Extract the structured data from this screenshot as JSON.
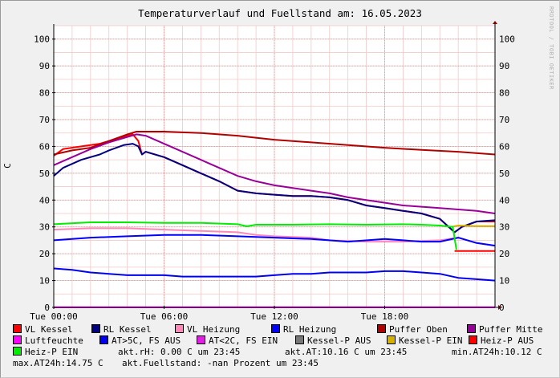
{
  "title": "Temperaturverlauf und Fuellstand am: 16.05.2023",
  "watermark": "RRDTOOL / TOBI OETIKER",
  "chart_data": {
    "type": "line",
    "title": "Temperaturverlauf und Fuellstand am: 16.05.2023",
    "ylabel": "C",
    "xlabel": "",
    "ylim": [
      0,
      105
    ],
    "yticks": [
      0,
      10,
      20,
      30,
      40,
      50,
      60,
      70,
      80,
      90,
      100
    ],
    "xlim_hours": [
      0,
      24
    ],
    "xticks": [
      {
        "label": "Tue 00:00",
        "hour": 0
      },
      {
        "label": "Tue 06:00",
        "hour": 6
      },
      {
        "label": "Tue 12:00",
        "hour": 12
      },
      {
        "label": "Tue 18:00",
        "hour": 18
      }
    ],
    "grid": true,
    "legend_position": "bottom",
    "series": [
      {
        "name": "VL Kessel",
        "color": "#ff0000",
        "points": [
          [
            0,
            56.5
          ],
          [
            0.5,
            59
          ],
          [
            1.5,
            60
          ],
          [
            2.5,
            61
          ],
          [
            3,
            62
          ],
          [
            3.8,
            63.5
          ],
          [
            4.3,
            64.5
          ],
          [
            4.6,
            62
          ],
          [
            4.8,
            57
          ],
          [
            5,
            58
          ],
          [
            6,
            56
          ],
          [
            7,
            53
          ],
          [
            8,
            50
          ],
          [
            9,
            47
          ],
          [
            10,
            43.5
          ],
          [
            11,
            42.5
          ],
          [
            12,
            42
          ],
          [
            13,
            41.5
          ],
          [
            14,
            41.5
          ],
          [
            15,
            41
          ],
          [
            16,
            40
          ],
          [
            17,
            38
          ],
          [
            18,
            37
          ],
          [
            19,
            36
          ],
          [
            20,
            35
          ],
          [
            21,
            33
          ],
          [
            21.8,
            28
          ],
          [
            22.2,
            30
          ],
          [
            23,
            32
          ],
          [
            24,
            32
          ]
        ]
      },
      {
        "name": "RL Kessel",
        "color": "#000080",
        "points": [
          [
            0,
            49
          ],
          [
            0.5,
            52
          ],
          [
            1.5,
            55
          ],
          [
            2.5,
            57
          ],
          [
            3,
            58.5
          ],
          [
            3.8,
            60.5
          ],
          [
            4.3,
            61
          ],
          [
            4.6,
            60
          ],
          [
            4.8,
            57
          ],
          [
            5,
            58
          ],
          [
            6,
            56
          ],
          [
            7,
            53
          ],
          [
            8,
            50
          ],
          [
            9,
            47
          ],
          [
            10,
            43.5
          ],
          [
            11,
            42.5
          ],
          [
            12,
            42
          ],
          [
            13,
            41.5
          ],
          [
            14,
            41.5
          ],
          [
            15,
            41
          ],
          [
            16,
            40
          ],
          [
            17,
            38
          ],
          [
            18,
            37
          ],
          [
            19,
            36
          ],
          [
            20,
            35
          ],
          [
            21,
            33
          ],
          [
            21.8,
            28
          ],
          [
            22.2,
            30
          ],
          [
            23,
            32
          ],
          [
            24,
            32.5
          ]
        ]
      },
      {
        "name": "VL Heizung",
        "color": "#ff88b8",
        "points": [
          [
            0,
            29
          ],
          [
            2,
            29.5
          ],
          [
            4,
            29.5
          ],
          [
            6,
            29
          ],
          [
            8,
            28.5
          ],
          [
            10,
            28
          ],
          [
            11,
            27
          ],
          [
            12,
            26.5
          ],
          [
            14,
            26
          ],
          [
            15,
            25
          ],
          [
            17,
            24.5
          ],
          [
            19,
            24.5
          ],
          [
            21,
            25
          ],
          [
            22,
            26
          ],
          [
            23,
            24
          ],
          [
            24,
            23
          ]
        ]
      },
      {
        "name": "RL Heizung",
        "color": "#0000ff",
        "points": [
          [
            0,
            25
          ],
          [
            2,
            26
          ],
          [
            4,
            26.5
          ],
          [
            6,
            27
          ],
          [
            8,
            27
          ],
          [
            10,
            26.5
          ],
          [
            12,
            26
          ],
          [
            14,
            25.5
          ],
          [
            16,
            24.5
          ],
          [
            18,
            25.5
          ],
          [
            19,
            25
          ],
          [
            20,
            24.5
          ],
          [
            21,
            24.5
          ],
          [
            22,
            26
          ],
          [
            23,
            24
          ],
          [
            24,
            23
          ]
        ]
      },
      {
        "name": "Puffer Oben",
        "color": "#b00000",
        "points": [
          [
            0,
            57
          ],
          [
            1,
            58.5
          ],
          [
            2,
            59.5
          ],
          [
            3,
            62
          ],
          [
            4,
            64.5
          ],
          [
            4.5,
            65.5
          ],
          [
            6,
            65.5
          ],
          [
            8,
            65
          ],
          [
            10,
            64
          ],
          [
            12,
            62.5
          ],
          [
            14,
            61.5
          ],
          [
            16,
            60.5
          ],
          [
            18,
            59.5
          ],
          [
            20,
            58.7
          ],
          [
            22,
            58
          ],
          [
            24,
            57
          ]
        ]
      },
      {
        "name": "Puffer Mitte",
        "color": "#990099",
        "points": [
          [
            0,
            53
          ],
          [
            1,
            56
          ],
          [
            2,
            59
          ],
          [
            3,
            61.5
          ],
          [
            4,
            63.5
          ],
          [
            4.5,
            64.5
          ],
          [
            5,
            64
          ],
          [
            6,
            61
          ],
          [
            7,
            58
          ],
          [
            8,
            55
          ],
          [
            9,
            52
          ],
          [
            10,
            49
          ],
          [
            11,
            47
          ],
          [
            12,
            45.5
          ],
          [
            13,
            44.5
          ],
          [
            14,
            43.5
          ],
          [
            15,
            42.5
          ],
          [
            16,
            41
          ],
          [
            17,
            40
          ],
          [
            18,
            39
          ],
          [
            19,
            38
          ],
          [
            20,
            37.5
          ],
          [
            21,
            37
          ],
          [
            22,
            36.5
          ],
          [
            23,
            36
          ],
          [
            24,
            35
          ]
        ]
      },
      {
        "name": "Luftfeuchte",
        "color": "#ff00ff",
        "points": [
          [
            0,
            0
          ],
          [
            24,
            0
          ]
        ]
      },
      {
        "name": "AT>5C, FS AUS",
        "color": "#0000ee",
        "points": [
          [
            0,
            14.5
          ],
          [
            1,
            14
          ],
          [
            2,
            13
          ],
          [
            3,
            12.5
          ],
          [
            4,
            12
          ],
          [
            5,
            12
          ],
          [
            6,
            12
          ],
          [
            7,
            11.5
          ],
          [
            8,
            11.5
          ],
          [
            9,
            11.5
          ],
          [
            10,
            11.5
          ],
          [
            11,
            11.5
          ],
          [
            12,
            12
          ],
          [
            13,
            12.5
          ],
          [
            14,
            12.5
          ],
          [
            15,
            13
          ],
          [
            16,
            13
          ],
          [
            17,
            13
          ],
          [
            18,
            13.5
          ],
          [
            19,
            13.5
          ],
          [
            20,
            13
          ],
          [
            21,
            12.5
          ],
          [
            22,
            11
          ],
          [
            23,
            10.5
          ],
          [
            24,
            10
          ]
        ]
      },
      {
        "name": "AT<2C, FS EIN",
        "color": "#e020e0",
        "points": [
          [
            0,
            0.1
          ],
          [
            24,
            0.1
          ]
        ]
      },
      {
        "name": "Kessel-P AUS",
        "color": "#777777",
        "points": []
      },
      {
        "name": "Kessel-P EIN",
        "color": "#d4b000",
        "points": [
          [
            21.6,
            30
          ],
          [
            22,
            30.5
          ],
          [
            23,
            30.3
          ],
          [
            24,
            30.3
          ]
        ]
      },
      {
        "name": "Heiz-P AUS",
        "color": "#ff0000",
        "points": [
          [
            21.8,
            21
          ],
          [
            24,
            21
          ]
        ]
      },
      {
        "name": "Heiz-P EIN",
        "color": "#00ee00",
        "points": [
          [
            0,
            31
          ],
          [
            2,
            31.7
          ],
          [
            4,
            31.7
          ],
          [
            6,
            31.5
          ],
          [
            8,
            31.5
          ],
          [
            10,
            31
          ],
          [
            10.5,
            30.2
          ],
          [
            11,
            30.8
          ],
          [
            13,
            30.8
          ],
          [
            15,
            31
          ],
          [
            17,
            30.8
          ],
          [
            19,
            31
          ],
          [
            20,
            30.8
          ],
          [
            21,
            30.5
          ],
          [
            21.7,
            30
          ],
          [
            21.9,
            21.5
          ]
        ]
      }
    ]
  },
  "legend": [
    {
      "label": "VL Kessel",
      "color": "#ff0000"
    },
    {
      "label": "RL Kessel",
      "color": "#000080"
    },
    {
      "label": "VL Heizung",
      "color": "#ff88b8"
    },
    {
      "label": "RL Heizung",
      "color": "#0000ff"
    },
    {
      "label": "Puffer Oben",
      "color": "#b00000"
    },
    {
      "label": "Puffer Mitte",
      "color": "#990099"
    },
    {
      "label": "Luftfeuchte",
      "color": "#ff00ff"
    },
    {
      "label": "AT>5C, FS AUS",
      "color": "#0000ee"
    },
    {
      "label": "AT<2C, FS EIN",
      "color": "#e020e0"
    },
    {
      "label": "Kessel-P AUS",
      "color": "#777777"
    },
    {
      "label": "Kessel-P EIN",
      "color": "#d4b000"
    },
    {
      "label": "Heiz-P AUS",
      "color": "#ff0000"
    },
    {
      "label": "Heiz-P EIN",
      "color": "#00ee00"
    }
  ],
  "info": {
    "rh": "akt.rH: 0.00 C um 23:45",
    "at": "akt.AT:10.16 C um 23:45",
    "min": "min.AT24h:10.12 C",
    "max": "max.AT24h:14.75 C",
    "fuellstand": "akt.Fuellstand: -nan Prozent um 23:45"
  }
}
